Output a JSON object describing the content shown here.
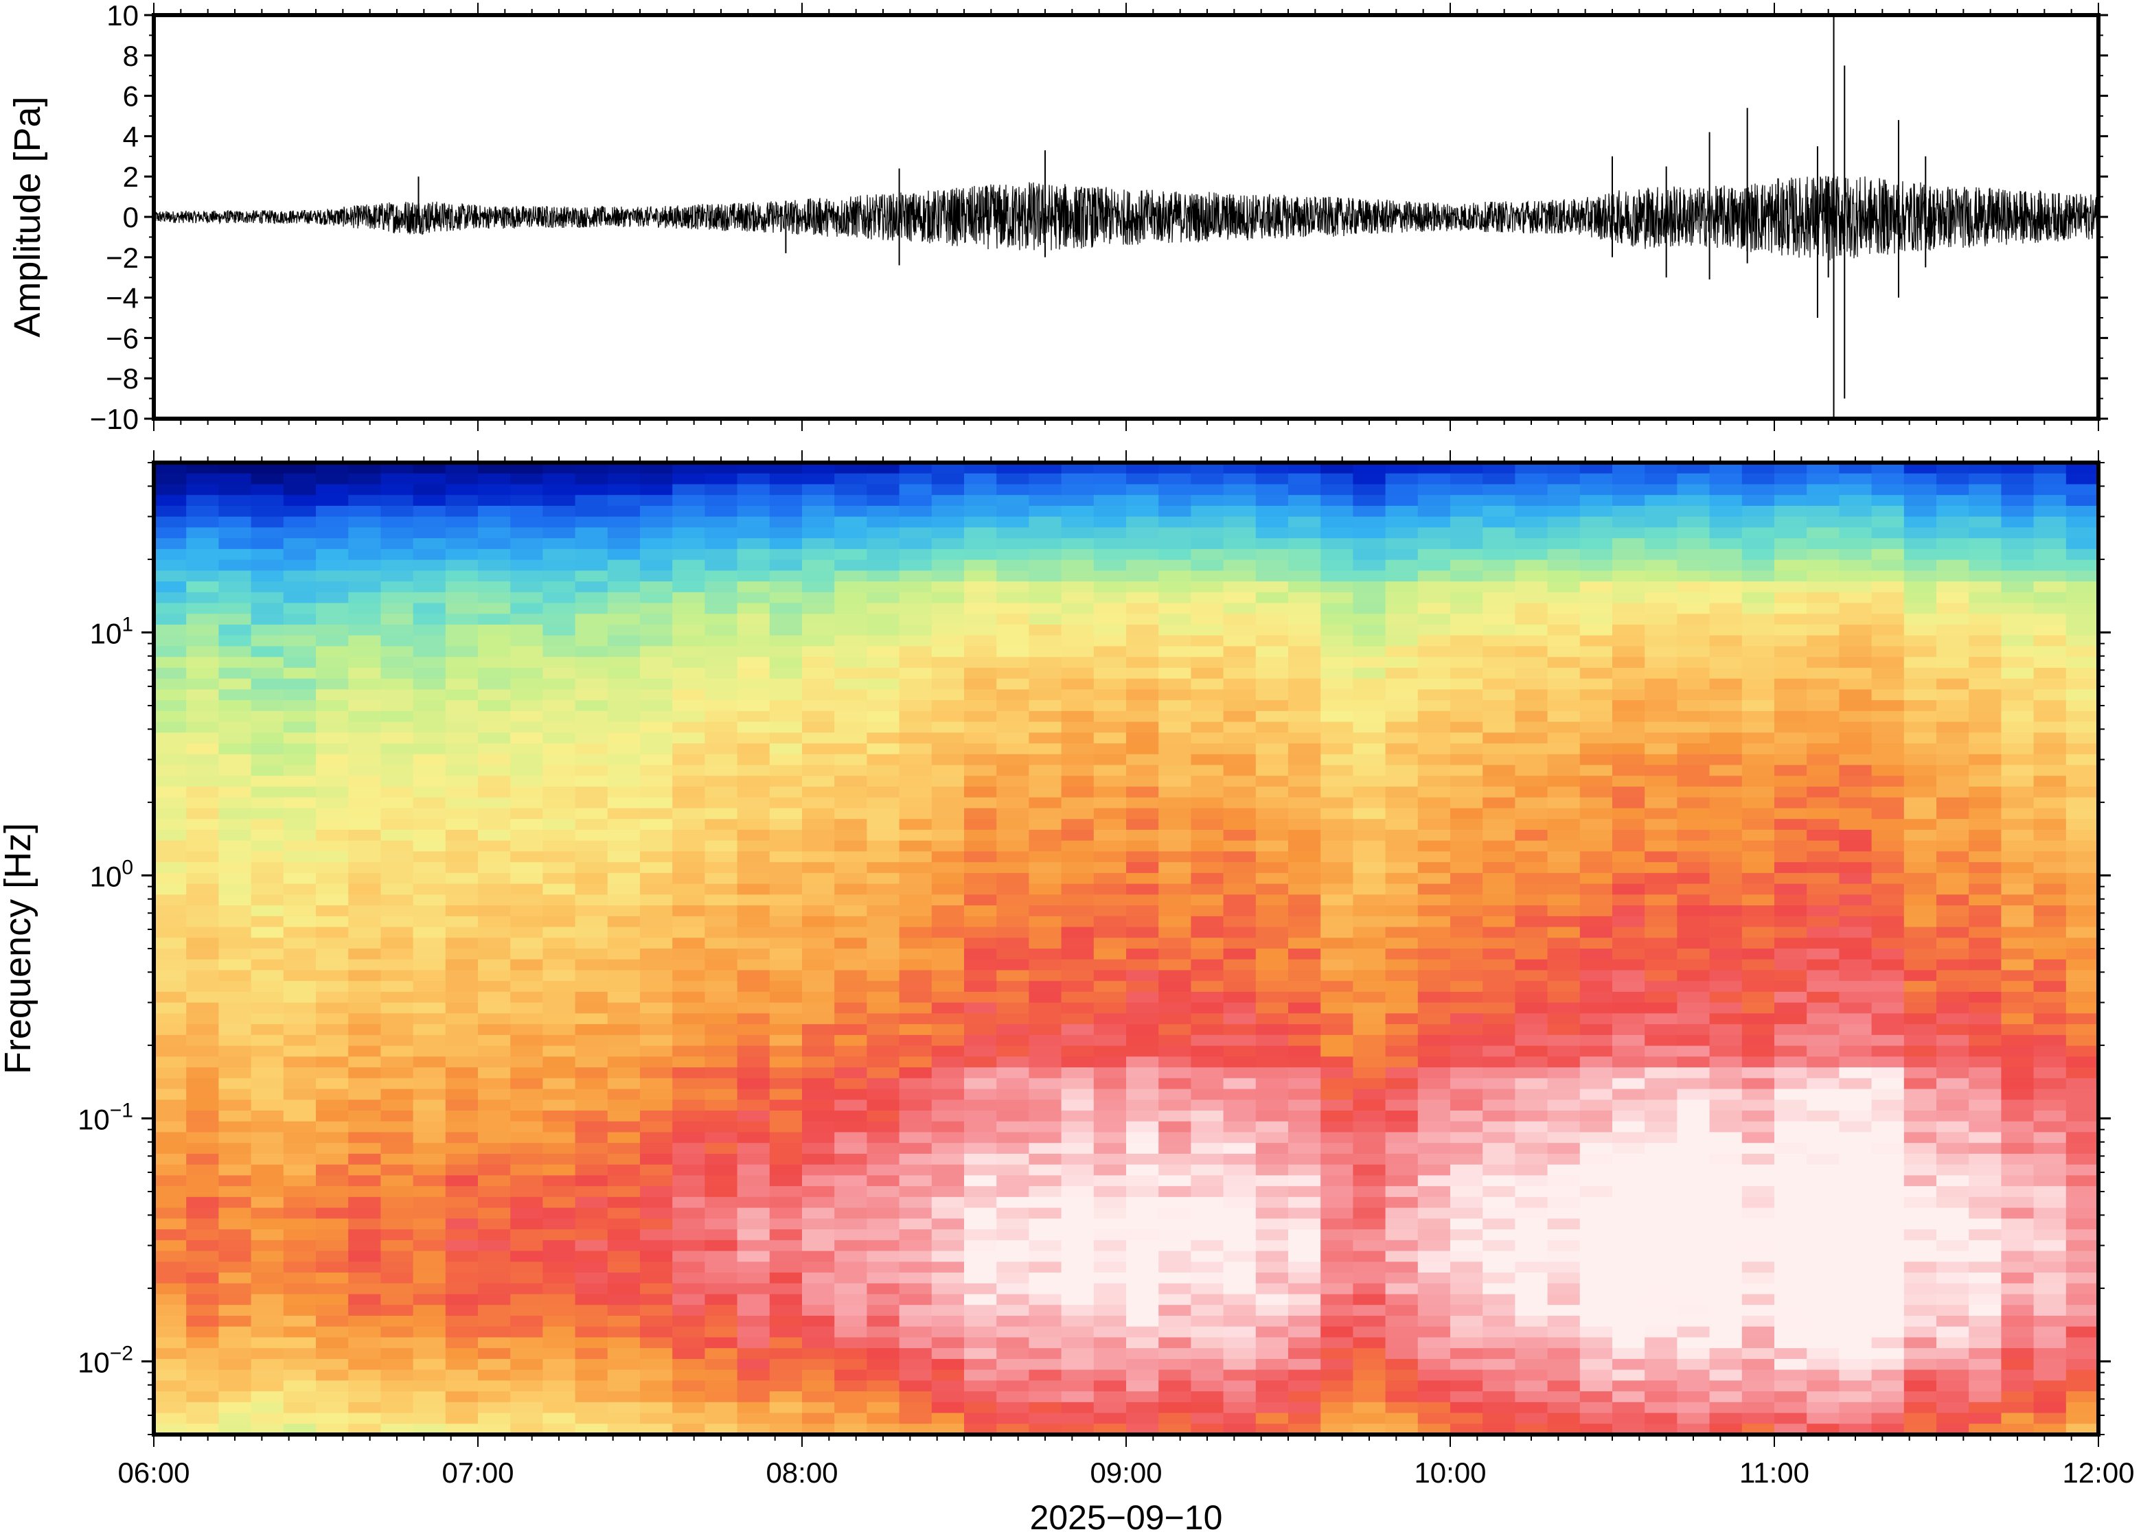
{
  "chart_data": [
    {
      "type": "line",
      "ylabel": "Amplitude [Pa]",
      "ylim": [
        -10,
        10
      ],
      "yticks": [
        "10",
        "8",
        "6",
        "4",
        "2",
        "0",
        "−2",
        "−4",
        "−6",
        "−8",
        "−10"
      ],
      "xlim": [
        "06:00",
        "12:00"
      ],
      "grid": false,
      "series": [
        {
          "envelope_hours": [
            6.0,
            6.5,
            6.8,
            7.0,
            7.5,
            7.9,
            8.3,
            8.7,
            9.0,
            9.5,
            10.0,
            10.4,
            10.6,
            10.8,
            11.0,
            11.17,
            11.4,
            11.7,
            12.0
          ],
          "envelope_amplitude": [
            0.3,
            0.35,
            0.9,
            0.6,
            0.5,
            0.8,
            1.2,
            1.8,
            1.4,
            1.1,
            0.7,
            0.9,
            1.6,
            1.5,
            1.9,
            2.2,
            1.8,
            1.4,
            1.1
          ]
        }
      ],
      "spikes": [
        {
          "time": "06:49",
          "max": 2.0,
          "min": -0.4
        },
        {
          "time": "07:57",
          "max": 0.8,
          "min": -1.8
        },
        {
          "time": "08:18",
          "max": 2.4,
          "min": -2.4
        },
        {
          "time": "08:45",
          "max": 3.3,
          "min": -2.0
        },
        {
          "time": "10:30",
          "max": 3.0,
          "min": -2.0
        },
        {
          "time": "10:40",
          "max": 2.5,
          "min": -3.0
        },
        {
          "time": "10:48",
          "max": 4.2,
          "min": -3.1
        },
        {
          "time": "10:55",
          "max": 5.4,
          "min": -2.3
        },
        {
          "time": "11:08",
          "max": 3.5,
          "min": -5.0
        },
        {
          "time": "11:10",
          "max": 2.0,
          "min": -3.0
        },
        {
          "time": "11:11",
          "max": 10.0,
          "min": -10.0
        },
        {
          "time": "11:13",
          "max": 7.5,
          "min": -9.0
        },
        {
          "time": "11:23",
          "max": 4.8,
          "min": -4.0
        },
        {
          "time": "11:28",
          "max": 3.0,
          "min": -2.5
        }
      ]
    },
    {
      "type": "heatmap",
      "ylabel": "Frequency [Hz]",
      "yscale": "log",
      "ylim": [
        0.005,
        50
      ],
      "yticks": [
        {
          "value": 10,
          "base": "10",
          "exp": "1"
        },
        {
          "value": 1,
          "base": "10",
          "exp": "0"
        },
        {
          "value": 0.1,
          "base": "10",
          "exp": "−1"
        },
        {
          "value": 0.01,
          "base": "10",
          "exp": "−2"
        }
      ],
      "x_ticks": [
        "06:00",
        "07:00",
        "08:00",
        "09:00",
        "10:00",
        "11:00",
        "12:00"
      ],
      "x_date_label": "2025−09−10",
      "colormap": "rainbow (navy → blue → cyan → green → yellow → orange → red → white)",
      "colors": [
        "#000a7a",
        "#0020c8",
        "#1e6ff0",
        "#35b4f0",
        "#70e0c8",
        "#c8f08c",
        "#f8f08c",
        "#fcc865",
        "#f8963c",
        "#f04a4a",
        "#f6969c",
        "#fff0f0"
      ],
      "columns_per_hour": 10,
      "power_profile_freq_hz": [
        50,
        30,
        15,
        8,
        3,
        1,
        0.3,
        0.1,
        0.05,
        0.03,
        0.015,
        0.007,
        0.005
      ],
      "power_profile_level": [
        0.03,
        0.2,
        0.38,
        0.48,
        0.56,
        0.62,
        0.68,
        0.76,
        0.82,
        0.84,
        0.8,
        0.68,
        0.6
      ],
      "activity_hours": [
        6.0,
        6.5,
        7.0,
        7.5,
        8.0,
        8.5,
        8.8,
        9.0,
        9.5,
        9.7,
        10.0,
        10.5,
        10.8,
        11.0,
        11.17,
        11.5,
        12.0
      ],
      "activity_level": [
        0.35,
        0.35,
        0.4,
        0.5,
        0.6,
        0.78,
        0.9,
        0.85,
        0.8,
        0.55,
        0.75,
        0.9,
        0.95,
        0.9,
        1.0,
        0.85,
        0.7
      ]
    }
  ]
}
